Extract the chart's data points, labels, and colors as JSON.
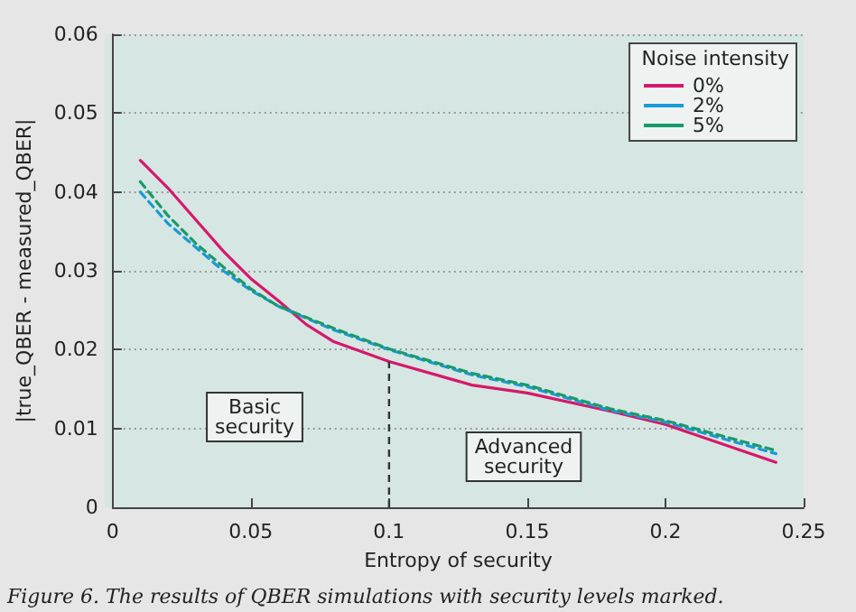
{
  "chart_data": {
    "type": "line",
    "xlabel": "Entropy of security",
    "ylabel": "|true_QBER - measured_QBER|",
    "legend_title": "Noise intensity",
    "legend": "top right",
    "grid": "y",
    "marker": "none",
    "xlim": [
      0,
      0.25
    ],
    "xticks": [
      0,
      0.05,
      0.1,
      0.15,
      0.2,
      0.25
    ],
    "ylim": [
      0,
      0.06
    ],
    "yticks": [
      0,
      0.01,
      0.02,
      0.03,
      0.04,
      0.05,
      0.06
    ],
    "x": [
      0.01,
      0.02,
      0.03,
      0.04,
      0.05,
      0.06,
      0.07,
      0.08,
      0.1,
      0.13,
      0.15,
      0.18,
      0.2,
      0.24
    ],
    "series": [
      {
        "name": "0%",
        "color": "#d6186a",
        "line_style": "solid",
        "values": [
          0.044,
          0.0405,
          0.0365,
          0.0325,
          0.029,
          0.0262,
          0.0232,
          0.021,
          0.0185,
          0.0155,
          0.0145,
          0.0122,
          0.0105,
          0.0057
        ]
      },
      {
        "name": "2%",
        "color": "#1a9ad6",
        "line_style": "dashed",
        "values": [
          0.04,
          0.036,
          0.033,
          0.03,
          0.0275,
          0.0255,
          0.024,
          0.0225,
          0.02,
          0.0168,
          0.0153,
          0.0123,
          0.0108,
          0.0068
        ]
      },
      {
        "name": "5%",
        "color": "#1a9a6a",
        "line_style": "dashed",
        "values": [
          0.0413,
          0.037,
          0.0335,
          0.0305,
          0.0277,
          0.0255,
          0.0241,
          0.0227,
          0.0201,
          0.017,
          0.0155,
          0.0125,
          0.011,
          0.0072
        ]
      }
    ],
    "ref_lines": [
      {
        "axis": "x",
        "value": 0.1,
        "line_style": "dashed",
        "color": "#333333"
      }
    ],
    "annotations": [
      "Basic\nsecurity",
      "Advanced\nsecurity",
      "Figure 6. The results of QBER simulations with security levels marked."
    ]
  }
}
